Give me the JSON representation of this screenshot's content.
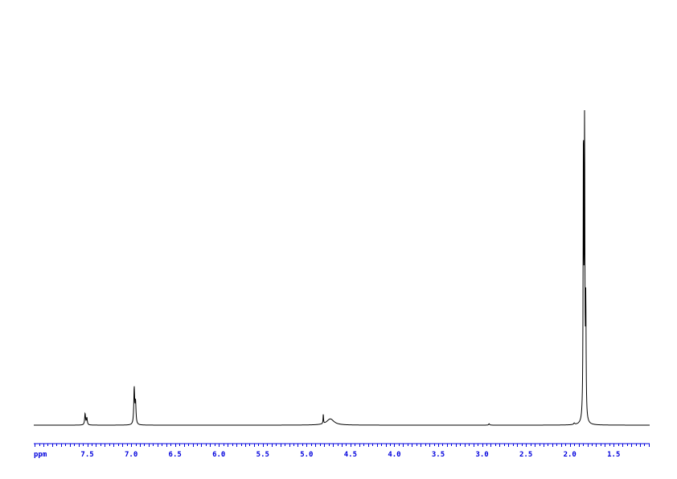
{
  "chart_data": {
    "type": "line",
    "title": "",
    "xlabel": "ppm",
    "ylabel": "",
    "xlim": [
      8.11,
      1.09
    ],
    "x_reversed": true,
    "grid": false,
    "axis_color": "#0000dd",
    "trace_color": "#000000",
    "x_ticks": [
      "7.5",
      "7.0",
      "6.5",
      "6.0",
      "5.5",
      "5.0",
      "4.5",
      "4.0",
      "3.5",
      "3.0",
      "2.5",
      "2.0",
      "1.5"
    ],
    "intensity_scale": "relative, tallest peak = 100",
    "peaks": [
      {
        "ppm": 7.525,
        "intensity": 4.0,
        "width": 0.006
      },
      {
        "ppm": 7.505,
        "intensity": 2.5,
        "width": 0.006
      },
      {
        "ppm": 6.965,
        "intensity": 12.7,
        "width": 0.006
      },
      {
        "ppm": 6.95,
        "intensity": 7.5,
        "width": 0.006
      },
      {
        "ppm": 4.81,
        "intensity": 3.4,
        "width": 0.003
      },
      {
        "ppm": 4.73,
        "intensity": 2.2,
        "width": 0.05
      },
      {
        "ppm": 2.92,
        "intensity": 0.5,
        "width": 0.006
      },
      {
        "ppm": 1.95,
        "intensity": 0.5,
        "width": 0.008
      },
      {
        "ppm": 1.845,
        "intensity": 97.5,
        "width": 0.004
      },
      {
        "ppm": 1.832,
        "intensity": 100,
        "width": 0.004
      },
      {
        "ppm": 1.818,
        "intensity": 39,
        "width": 0.004
      }
    ]
  }
}
